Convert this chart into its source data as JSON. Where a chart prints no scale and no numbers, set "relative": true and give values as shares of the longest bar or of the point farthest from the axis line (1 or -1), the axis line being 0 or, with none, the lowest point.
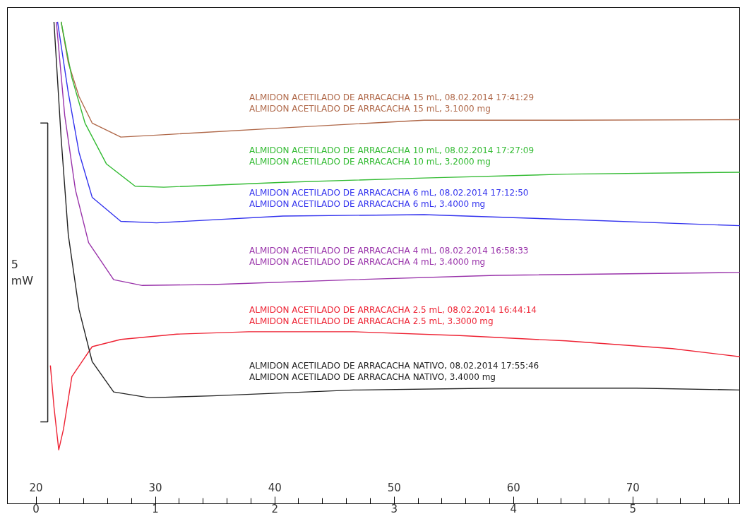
{
  "chart_data": {
    "type": "line",
    "relative": true,
    "xlim": [
      17.6,
      79.0
    ],
    "xticks": [
      20,
      30,
      40,
      50,
      60,
      70
    ],
    "x2lim": [
      -0.24,
      5.9
    ],
    "x2ticks": [
      0,
      1,
      2,
      3,
      4,
      5
    ],
    "grid": false,
    "marker": "none",
    "line_style": "solid",
    "annotations": [
      "5\nmW"
    ],
    "series": [
      {
        "name": "ALMIDON ACETILADO DE ARRACACHA 15 mL, 08.02.2014 17:41:29\nALMIDON ACETILADO DE ARRACACHA 15 mL, 3.1000 mg",
        "color": "#b0694a",
        "x": [
          22.1,
          22.7,
          23.6,
          24.7,
          27.1,
          30.1,
          40.7,
          52.5,
          64.4,
          79.0
        ],
        "values": [
          1.0,
          0.915,
          0.845,
          0.79,
          0.761,
          0.765,
          0.78,
          0.796,
          0.796,
          0.797
        ]
      },
      {
        "name": "ALMIDON ACETILADO DE ARRACACHA 10 mL, 08.02.2014 17:27:09\nALMIDON ACETILADO DE ARRACACHA 10 mL, 3.2000 mg",
        "color": "#33bb33",
        "x": [
          22.1,
          23.0,
          24.1,
          25.9,
          28.3,
          30.7,
          40.7,
          52.5,
          64.4,
          79.0
        ],
        "values": [
          1.0,
          0.884,
          0.79,
          0.705,
          0.659,
          0.657,
          0.667,
          0.676,
          0.684,
          0.688
        ]
      },
      {
        "name": "ALMIDON ACETILADO DE ARRACACHA 6 mL, 08.02.2014 17:12:50\nALMIDON ACETILADO DE ARRACACHA 6 mL, 3.4000 mg",
        "color": "#3333ee",
        "x": [
          21.8,
          22.7,
          23.6,
          24.7,
          27.1,
          30.1,
          40.7,
          52.5,
          64.4,
          79.0
        ],
        "values": [
          1.0,
          0.853,
          0.729,
          0.636,
          0.586,
          0.583,
          0.597,
          0.6,
          0.59,
          0.577
        ]
      },
      {
        "name": "ALMIDON ACETILADO DE ARRACACHA 4  mL, 08.02.2014 16:58:33\nALMIDON ACETILADO DE ARRACACHA 4  mL, 3.4000 mg",
        "color": "#9933aa",
        "x": [
          21.7,
          22.4,
          23.3,
          24.4,
          26.5,
          28.9,
          34.8,
          46.6,
          58.5,
          79.0
        ],
        "values": [
          1.0,
          0.806,
          0.651,
          0.542,
          0.465,
          0.453,
          0.455,
          0.465,
          0.474,
          0.48
        ]
      },
      {
        "name": "ALMIDON ACETILADO DE ARRACACHA 2.5  mL, 08.02.2014 16:44:14\nALMIDON ACETILADO DE ARRACACHA 2.5  mL, 3.3000 mg",
        "color": "#ee2233",
        "x": [
          21.2,
          21.5,
          21.9,
          22.3,
          23.0,
          24.7,
          27.1,
          31.8,
          37.8,
          46.6,
          55.5,
          64.4,
          73.3,
          79.0
        ],
        "values": [
          0.287,
          0.201,
          0.112,
          0.155,
          0.264,
          0.326,
          0.341,
          0.352,
          0.357,
          0.357,
          0.349,
          0.338,
          0.322,
          0.305
        ]
      },
      {
        "name": "ALMIDON ACETILADO DE ARRACACHA NATIVO, 08.02.2014 17:55:46\nALMIDON ACETILADO DE ARRACACHA NATIVO, 3.4000 mg",
        "color": "#222222",
        "x": [
          21.5,
          22.1,
          22.7,
          23.6,
          24.7,
          26.5,
          29.5,
          34.8,
          46.6,
          58.5,
          70.3,
          79.0
        ],
        "values": [
          1.0,
          0.759,
          0.558,
          0.403,
          0.295,
          0.232,
          0.22,
          0.224,
          0.236,
          0.24,
          0.24,
          0.236
        ]
      }
    ]
  }
}
